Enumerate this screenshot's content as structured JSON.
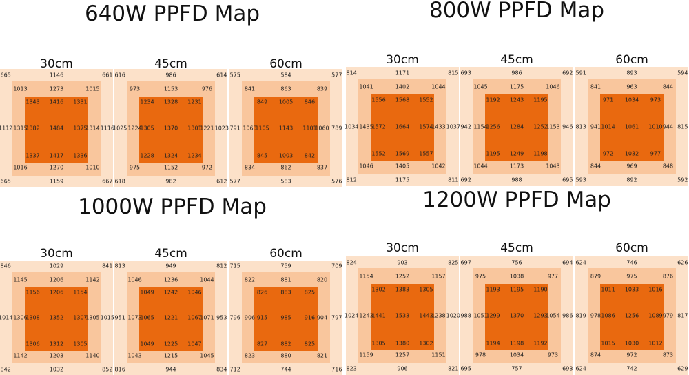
{
  "sections": [
    {
      "title": "640W PPFD Map",
      "maps": [
        {
          "label": "30cm",
          "outer": [
            665,
            1146,
            661,
            1112,
            1116,
            665,
            1159,
            667
          ],
          "middle": [
            1013,
            1273,
            1015,
            1315,
            1314,
            1016,
            1270,
            1010
          ],
          "inner": [
            1343,
            1416,
            1331,
            1382,
            1484,
            1375,
            1337,
            1417,
            1336
          ]
        },
        {
          "label": "45cm",
          "outer": [
            616,
            986,
            614,
            1025,
            1023,
            618,
            982,
            612
          ],
          "middle": [
            973,
            1153,
            976,
            1224,
            1221,
            975,
            1152,
            972
          ],
          "inner": [
            1234,
            1328,
            1231,
            1305,
            1370,
            1301,
            1228,
            1324,
            1234
          ]
        },
        {
          "label": "60cm",
          "outer": [
            575,
            584,
            577,
            791,
            789,
            577,
            583,
            576
          ],
          "middle": [
            841,
            863,
            839,
            1063,
            1060,
            834,
            862,
            837
          ],
          "inner": [
            849,
            1005,
            846,
            1105,
            1143,
            1101,
            845,
            1003,
            842
          ]
        }
      ]
    },
    {
      "title": "800W PPFD Map",
      "maps": [
        {
          "label": "30cm",
          "outer": [
            814,
            1171,
            815,
            1034,
            1037,
            812,
            1175,
            811
          ],
          "middle": [
            1041,
            1402,
            1044,
            1435,
            1433,
            1046,
            1405,
            1042
          ],
          "inner": [
            1556,
            1568,
            1552,
            1572,
            1664,
            1574,
            1552,
            1569,
            1557
          ]
        },
        {
          "label": "45cm",
          "outer": [
            693,
            986,
            692,
            942,
            946,
            692,
            988,
            695
          ],
          "middle": [
            1045,
            1175,
            1046,
            1154,
            1153,
            1044,
            1173,
            1043
          ],
          "inner": [
            1192,
            1243,
            1195,
            1256,
            1284,
            1252,
            1195,
            1249,
            1198
          ]
        },
        {
          "label": "60cm",
          "outer": [
            591,
            893,
            594,
            813,
            815,
            593,
            892,
            592
          ],
          "middle": [
            841,
            963,
            844,
            941,
            944,
            844,
            969,
            848
          ],
          "inner": [
            971,
            1034,
            973,
            1014,
            1061,
            1010,
            972,
            1032,
            977
          ]
        }
      ]
    },
    {
      "title": "1000W PPFD Map",
      "maps": [
        {
          "label": "30cm",
          "outer": [
            846,
            1029,
            841,
            1014,
            1015,
            842,
            1032,
            852
          ],
          "middle": [
            1145,
            1206,
            1142,
            1306,
            1305,
            1142,
            1203,
            1140
          ],
          "inner": [
            1156,
            1206,
            1154,
            1308,
            1352,
            1307,
            1306,
            1312,
            1305
          ]
        },
        {
          "label": "45cm",
          "outer": [
            813,
            949,
            812,
            951,
            953,
            816,
            944,
            834
          ],
          "middle": [
            1046,
            1236,
            1044,
            1073,
            1071,
            1043,
            1215,
            1045
          ],
          "inner": [
            1049,
            1242,
            1046,
            1065,
            1221,
            1067,
            1049,
            1225,
            1047
          ]
        },
        {
          "label": "60cm",
          "outer": [
            715,
            759,
            709,
            796,
            797,
            712,
            744,
            716
          ],
          "middle": [
            822,
            881,
            820,
            906,
            904,
            823,
            880,
            821
          ],
          "inner": [
            826,
            883,
            825,
            915,
            985,
            916,
            827,
            882,
            825
          ]
        }
      ]
    },
    {
      "title": "1200W PPFD Map",
      "maps": [
        {
          "label": "30cm",
          "outer": [
            824,
            903,
            825,
            1024,
            1020,
            823,
            906,
            821
          ],
          "middle": [
            1154,
            1252,
            1157,
            1243,
            1238,
            1159,
            1257,
            1151
          ],
          "inner": [
            1302,
            1383,
            1305,
            1441,
            1533,
            1443,
            1305,
            1380,
            1302
          ]
        },
        {
          "label": "45cm",
          "outer": [
            697,
            756,
            694,
            988,
            986,
            695,
            757,
            693
          ],
          "middle": [
            975,
            1038,
            977,
            1051,
            1054,
            978,
            1034,
            973
          ],
          "inner": [
            1193,
            1195,
            1190,
            1299,
            1370,
            1293,
            1194,
            1198,
            1192
          ]
        },
        {
          "label": "60cm",
          "outer": [
            624,
            746,
            626,
            819,
            817,
            624,
            742,
            629
          ],
          "middle": [
            879,
            975,
            876,
            978,
            979,
            874,
            972,
            873
          ],
          "inner": [
            1011,
            1033,
            1016,
            1086,
            1256,
            1089,
            1015,
            1030,
            1012
          ]
        }
      ]
    }
  ]
}
